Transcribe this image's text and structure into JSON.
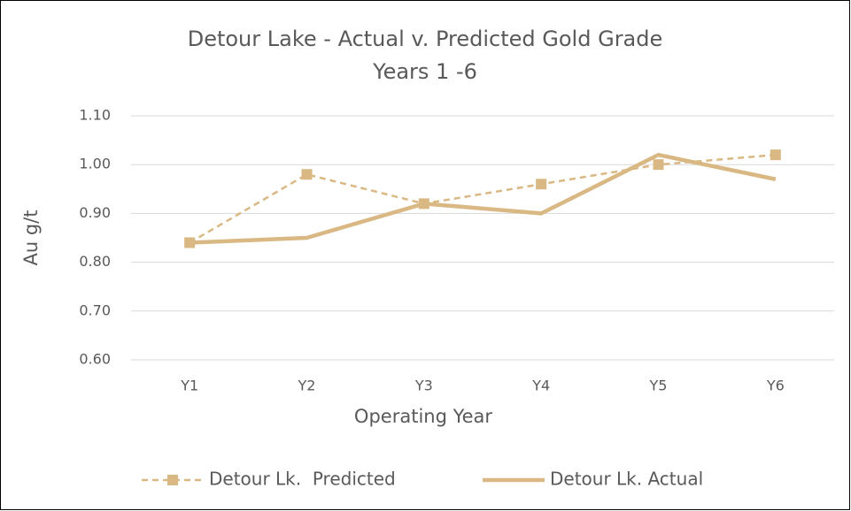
{
  "chart_data": {
    "type": "line",
    "title": [
      "Detour Lake - Actual v. Predicted Gold Grade",
      "Years 1 -6"
    ],
    "x_label": "Operating Year",
    "y_label": "Au g/t",
    "categories": [
      "Y1",
      "Y2",
      "Y3",
      "Y4",
      "Y5",
      "Y6"
    ],
    "series": [
      {
        "name": "Detour Lk.  Predicted",
        "color": "#d9b883",
        "style": "dashed",
        "marker": "square",
        "values": [
          0.84,
          0.98,
          0.92,
          0.96,
          1.0,
          1.02
        ]
      },
      {
        "name": "Detour Lk. Actual",
        "color": "#d9b883",
        "style": "solid",
        "values": [
          0.84,
          0.85,
          0.92,
          0.9,
          1.02,
          0.97
        ]
      }
    ],
    "ylim": [
      0.6,
      1.1
    ],
    "yticks": [
      {
        "value": 0.6,
        "label": "0.60"
      },
      {
        "value": 0.7,
        "label": "0.70"
      },
      {
        "value": 0.8,
        "label": "0.80"
      },
      {
        "value": 0.9,
        "label": "0.90"
      },
      {
        "value": 1.0,
        "label": "1.00"
      },
      {
        "value": 1.1,
        "label": "1.10"
      }
    ],
    "grid": true,
    "legend": "bottom"
  }
}
